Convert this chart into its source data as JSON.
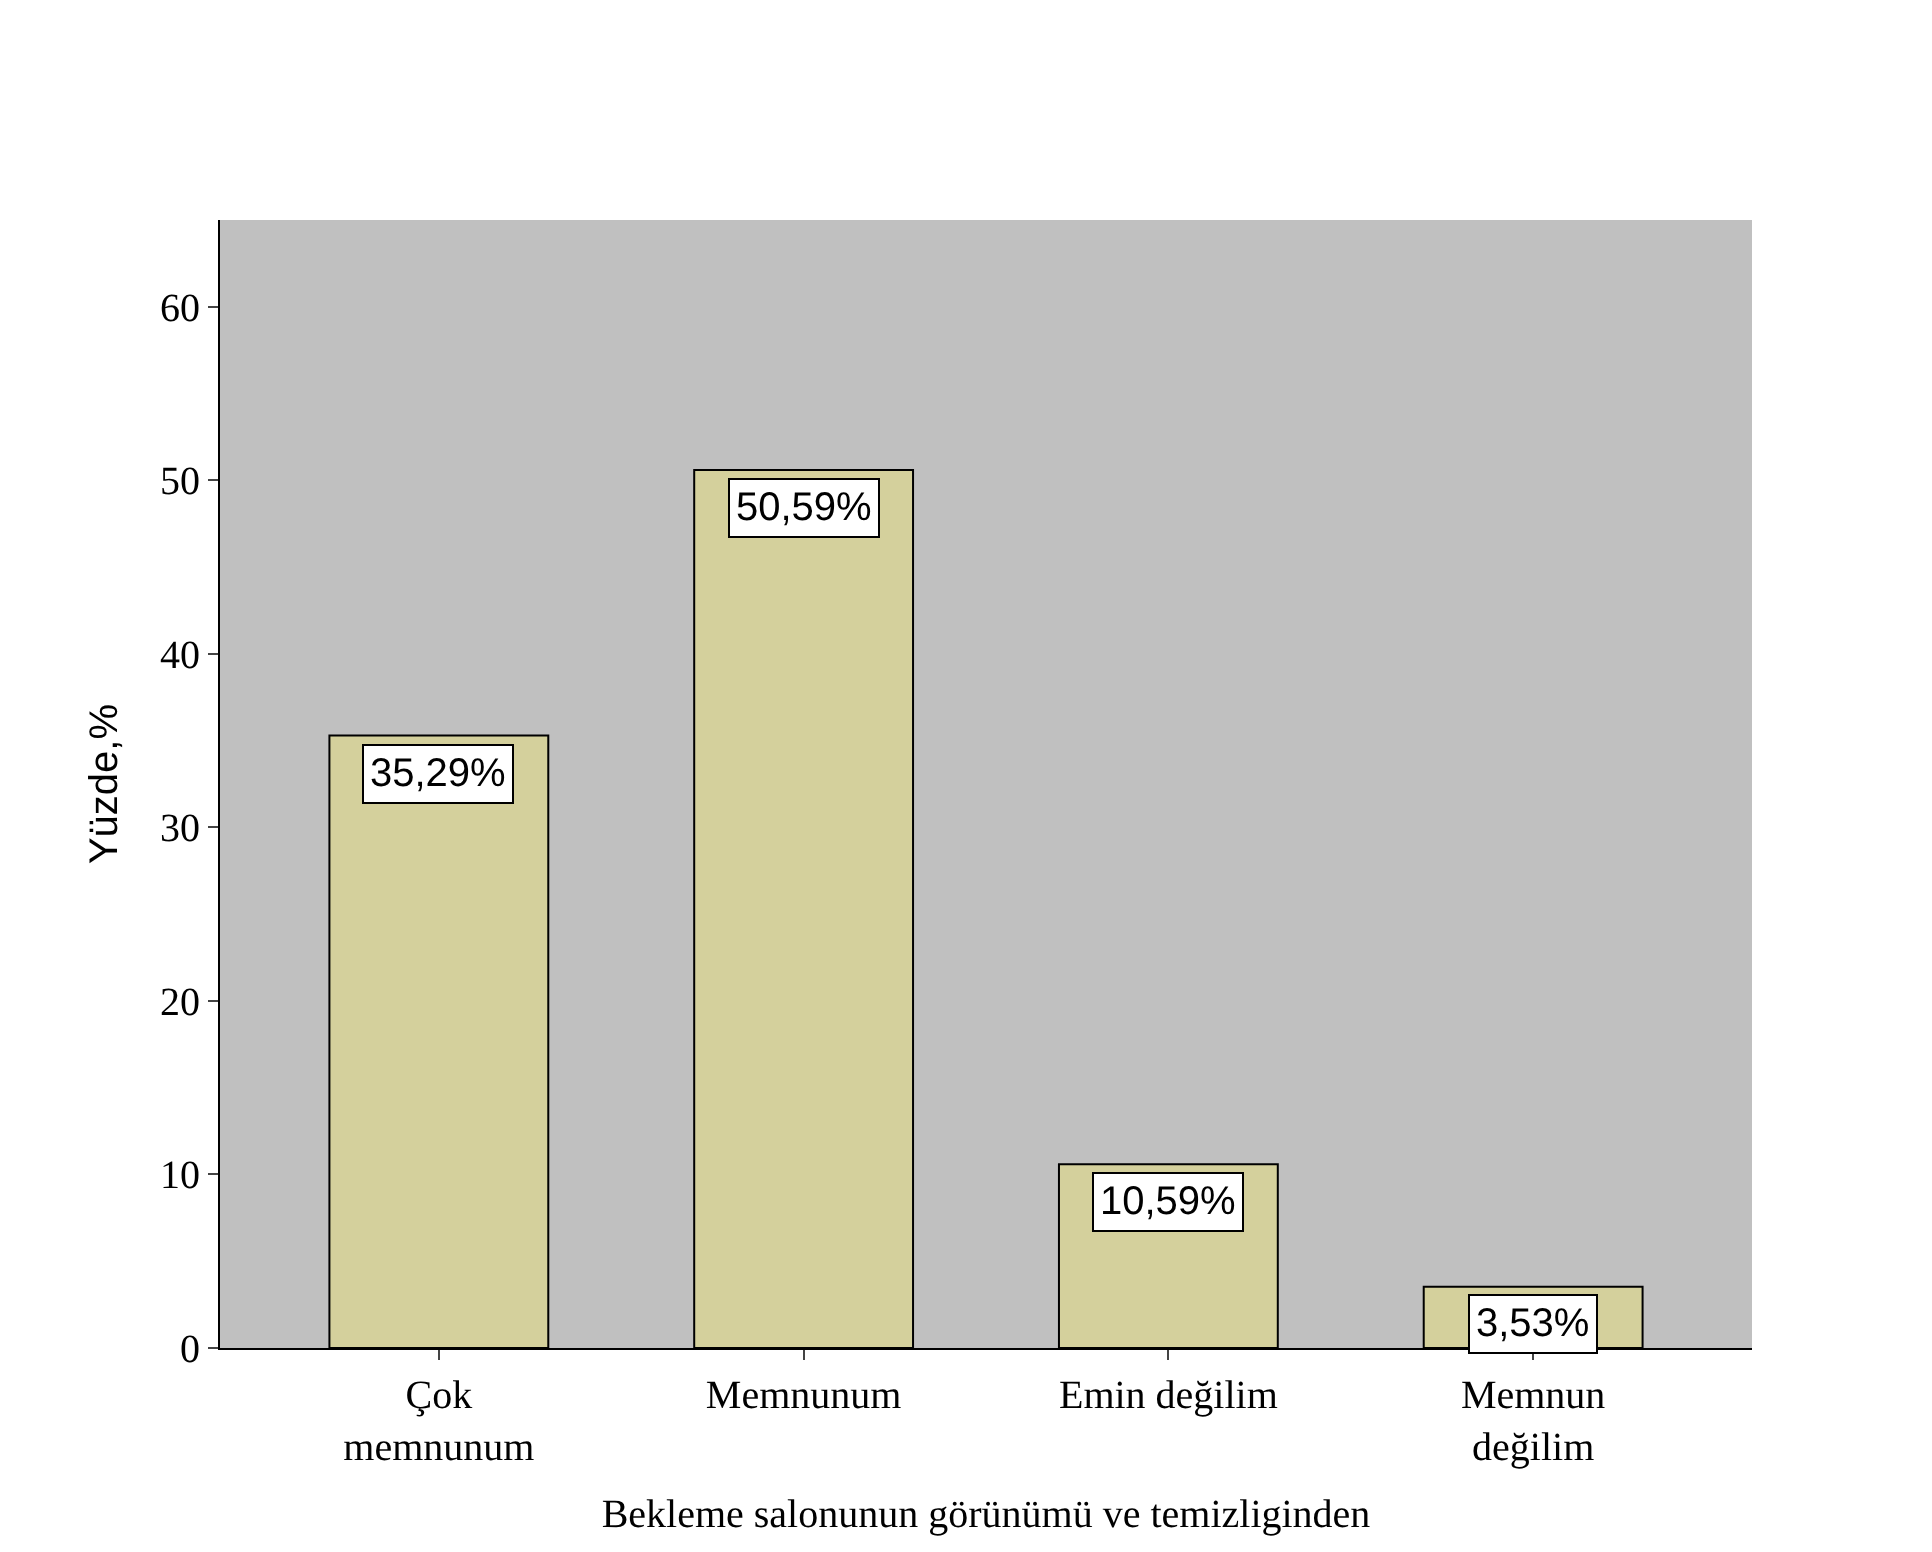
{
  "chart_data": {
    "type": "bar",
    "xlabel": "Bekleme salonunun görünümü ve temizliginden",
    "ylabel": "Yüzde,%",
    "categories": [
      "Çok\nmemnunum",
      "Memnunum",
      "Emin değilim",
      "Memnun\ndeğilim"
    ],
    "values": [
      35.29,
      50.59,
      10.59,
      3.53
    ],
    "value_labels": [
      "35,29%",
      "50,59%",
      "10,59%",
      "3,53%"
    ],
    "color": "#d4d09c",
    "ylim": [
      0,
      65
    ],
    "yticks": [
      0,
      10,
      20,
      30,
      40,
      50,
      60
    ],
    "grid": false,
    "legend": false
  }
}
